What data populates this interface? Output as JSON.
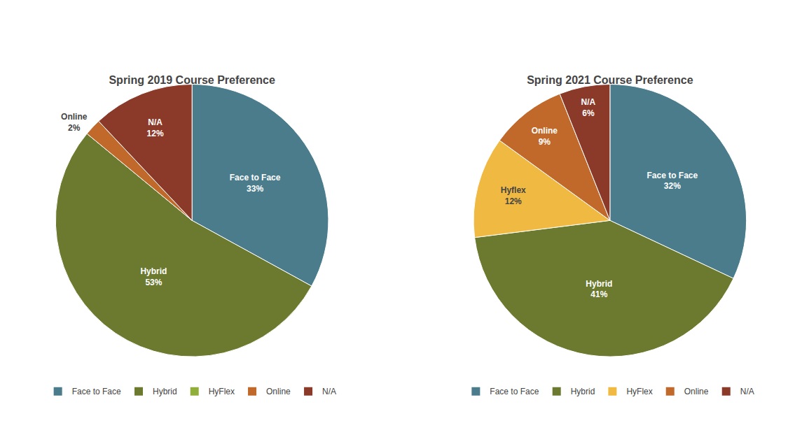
{
  "chart_data": [
    {
      "type": "pie",
      "title": "Spring 2019 Course Preference",
      "categories": [
        "Face to Face",
        "Hybrid",
        "Online",
        "N/A"
      ],
      "values": [
        33,
        53,
        2,
        12
      ],
      "value_labels": [
        "33%",
        "53%",
        "2%",
        "12%"
      ],
      "colors": [
        "#4a7c8c",
        "#6b7a2e",
        "#c1692a",
        "#8b3a2a"
      ],
      "data_labels": true,
      "legend": "bottom",
      "series": [
        {
          "name": "Face to Face",
          "color": "#4a7c8c"
        },
        {
          "name": "Hybrid",
          "color": "#6b7a2e"
        },
        {
          "name": "HyFlex",
          "color": "#8fae3a"
        },
        {
          "name": "Online",
          "color": "#c1692a"
        },
        {
          "name": "N/A",
          "color": "#8b3a2a"
        }
      ]
    },
    {
      "type": "pie",
      "title": "Spring 2021 Course Preference",
      "categories": [
        "Face to Face",
        "Hybrid",
        "Hyflex",
        "Online",
        "N/A"
      ],
      "values": [
        32,
        41,
        12,
        9,
        6
      ],
      "value_labels": [
        "32%",
        "41%",
        "12%",
        "9%",
        "6%"
      ],
      "colors": [
        "#4a7c8c",
        "#6b7a2e",
        "#f0b942",
        "#c1692a",
        "#8b3a2a"
      ],
      "data_labels": true,
      "legend": "bottom",
      "series": [
        {
          "name": "Face to Face",
          "color": "#4a7c8c"
        },
        {
          "name": "Hybrid",
          "color": "#6b7a2e"
        },
        {
          "name": "HyFlex",
          "color": "#f0b942"
        },
        {
          "name": "Online",
          "color": "#c1692a"
        },
        {
          "name": "N/A",
          "color": "#8b3a2a"
        }
      ]
    }
  ]
}
